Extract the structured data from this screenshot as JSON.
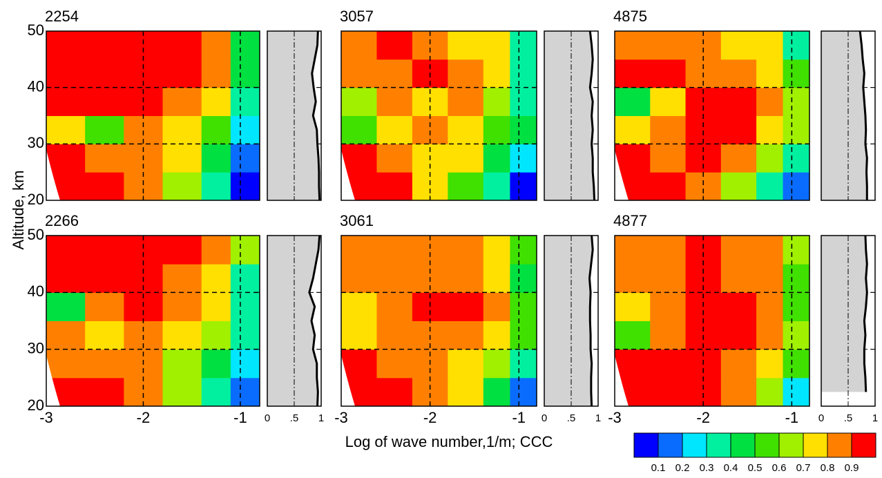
{
  "chart_data": {
    "type": "contour",
    "xlabel": "Log of wave number,1/m;  CCC",
    "ylabel": "Altitude, km",
    "xlim": [
      -3,
      -0.8
    ],
    "ylim": [
      20,
      50
    ],
    "xticks": [
      -3,
      -2,
      -1
    ],
    "yticks": [
      20,
      30,
      40,
      50
    ],
    "grid": true,
    "x_edges": [
      -3,
      -2.6,
      -2.2,
      -1.8,
      -1.4,
      -1.1,
      -0.8
    ],
    "y_edges": [
      20,
      25,
      30,
      35,
      40,
      45,
      50
    ],
    "profile_xlim": [
      0,
      1
    ],
    "profile_xticks": [
      0,
      {
        "value": 0.5,
        "label": ".5"
      },
      1
    ],
    "profile_alt": [
      20,
      22.5,
      25,
      27.5,
      30,
      32.5,
      35,
      37.5,
      40,
      42.5,
      45,
      47.5,
      50
    ],
    "colorbar": {
      "levels": [
        0.1,
        0.2,
        0.3,
        0.4,
        0.5,
        0.6,
        0.7,
        0.8,
        0.9
      ],
      "colors": [
        "#0000ff",
        "#0a6cff",
        "#00e6ff",
        "#00f0a0",
        "#00e040",
        "#40e000",
        "#a0f000",
        "#ffe000",
        "#ff8000",
        "#ff0000"
      ]
    },
    "panels": [
      {
        "label": "2254",
        "values": [
          [
            0.95,
            0.9,
            0.85,
            0.65,
            0.35,
            0.08
          ],
          [
            0.9,
            0.88,
            0.85,
            0.7,
            0.45,
            0.15
          ],
          [
            0.75,
            0.5,
            0.8,
            0.7,
            0.55,
            0.25
          ],
          [
            0.9,
            0.92,
            0.9,
            0.8,
            0.7,
            0.35
          ],
          [
            0.95,
            0.95,
            0.95,
            0.9,
            0.8,
            0.4
          ],
          [
            0.95,
            0.95,
            0.95,
            0.95,
            0.85,
            0.4
          ]
        ],
        "ccc": [
          0.97,
          0.96,
          0.96,
          0.95,
          0.93,
          0.92,
          0.85,
          0.9,
          0.86,
          0.83,
          0.88,
          0.93,
          0.94
        ]
      },
      {
        "label": "3057",
        "values": [
          [
            0.95,
            0.9,
            0.7,
            0.55,
            0.3,
            0.08
          ],
          [
            0.9,
            0.85,
            0.75,
            0.7,
            0.4,
            0.25
          ],
          [
            0.55,
            0.7,
            0.8,
            0.7,
            0.55,
            0.4
          ],
          [
            0.6,
            0.8,
            0.7,
            0.85,
            0.6,
            0.35
          ],
          [
            0.8,
            0.85,
            0.9,
            0.8,
            0.7,
            0.35
          ],
          [
            0.85,
            0.9,
            0.85,
            0.75,
            0.7,
            0.3
          ]
        ],
        "ccc": [
          0.93,
          0.92,
          0.9,
          0.9,
          0.88,
          0.9,
          0.88,
          0.9,
          0.85,
          0.88,
          0.9,
          0.88,
          0.85
        ]
      },
      {
        "label": "4875",
        "values": [
          [
            0.95,
            0.92,
            0.85,
            0.6,
            0.35,
            0.1
          ],
          [
            0.92,
            0.88,
            0.9,
            0.8,
            0.65,
            0.35
          ],
          [
            0.75,
            0.85,
            0.9,
            0.92,
            0.75,
            0.6
          ],
          [
            0.4,
            0.75,
            0.92,
            0.9,
            0.8,
            0.6
          ],
          [
            0.92,
            0.9,
            0.85,
            0.8,
            0.75,
            0.55
          ],
          [
            0.85,
            0.8,
            0.85,
            0.75,
            0.7,
            0.3
          ]
        ],
        "ccc": [
          0.85,
          0.85,
          0.84,
          0.85,
          0.82,
          0.83,
          0.82,
          0.8,
          0.78,
          0.8,
          0.77,
          0.75,
          0.72
        ]
      },
      {
        "label": "2266",
        "values": [
          [
            0.95,
            0.92,
            0.8,
            0.6,
            0.3,
            0.1
          ],
          [
            0.85,
            0.8,
            0.8,
            0.65,
            0.45,
            0.2
          ],
          [
            0.85,
            0.75,
            0.85,
            0.75,
            0.6,
            0.3
          ],
          [
            0.45,
            0.8,
            0.9,
            0.85,
            0.7,
            0.35
          ],
          [
            0.95,
            0.95,
            0.95,
            0.85,
            0.75,
            0.35
          ],
          [
            0.95,
            0.95,
            0.95,
            0.9,
            0.8,
            0.6
          ]
        ],
        "ccc": [
          0.93,
          0.94,
          0.92,
          0.92,
          0.85,
          0.88,
          0.82,
          0.88,
          0.78,
          0.85,
          0.9,
          0.95,
          0.97
        ]
      },
      {
        "label": "3061",
        "values": [
          [
            0.95,
            0.92,
            0.85,
            0.7,
            0.4,
            0.15
          ],
          [
            0.9,
            0.85,
            0.8,
            0.75,
            0.6,
            0.35
          ],
          [
            0.7,
            0.8,
            0.85,
            0.8,
            0.7,
            0.5
          ],
          [
            0.75,
            0.8,
            0.92,
            0.9,
            0.8,
            0.5
          ],
          [
            0.85,
            0.8,
            0.85,
            0.85,
            0.75,
            0.4
          ],
          [
            0.8,
            0.85,
            0.85,
            0.8,
            0.7,
            0.5
          ]
        ],
        "ccc": [
          0.88,
          0.87,
          0.87,
          0.88,
          0.86,
          0.86,
          0.85,
          0.85,
          0.86,
          0.84,
          0.87,
          0.9,
          0.88
        ]
      },
      {
        "label": "4877",
        "values": [
          [
            0.95,
            0.95,
            0.92,
            0.85,
            0.6,
            0.25
          ],
          [
            0.9,
            0.92,
            0.92,
            0.88,
            0.75,
            0.5
          ],
          [
            0.5,
            0.8,
            0.92,
            0.92,
            0.8,
            0.6
          ],
          [
            0.75,
            0.85,
            0.92,
            0.9,
            0.8,
            0.55
          ],
          [
            0.85,
            0.85,
            0.92,
            0.85,
            0.8,
            0.55
          ],
          [
            0.85,
            0.8,
            0.92,
            0.85,
            0.8,
            0.6
          ]
        ],
        "ccc": [
          null,
          0.83,
          0.82,
          0.8,
          0.8,
          0.82,
          0.8,
          0.83,
          0.85,
          0.83,
          0.85,
          0.83,
          0.82
        ]
      }
    ]
  }
}
